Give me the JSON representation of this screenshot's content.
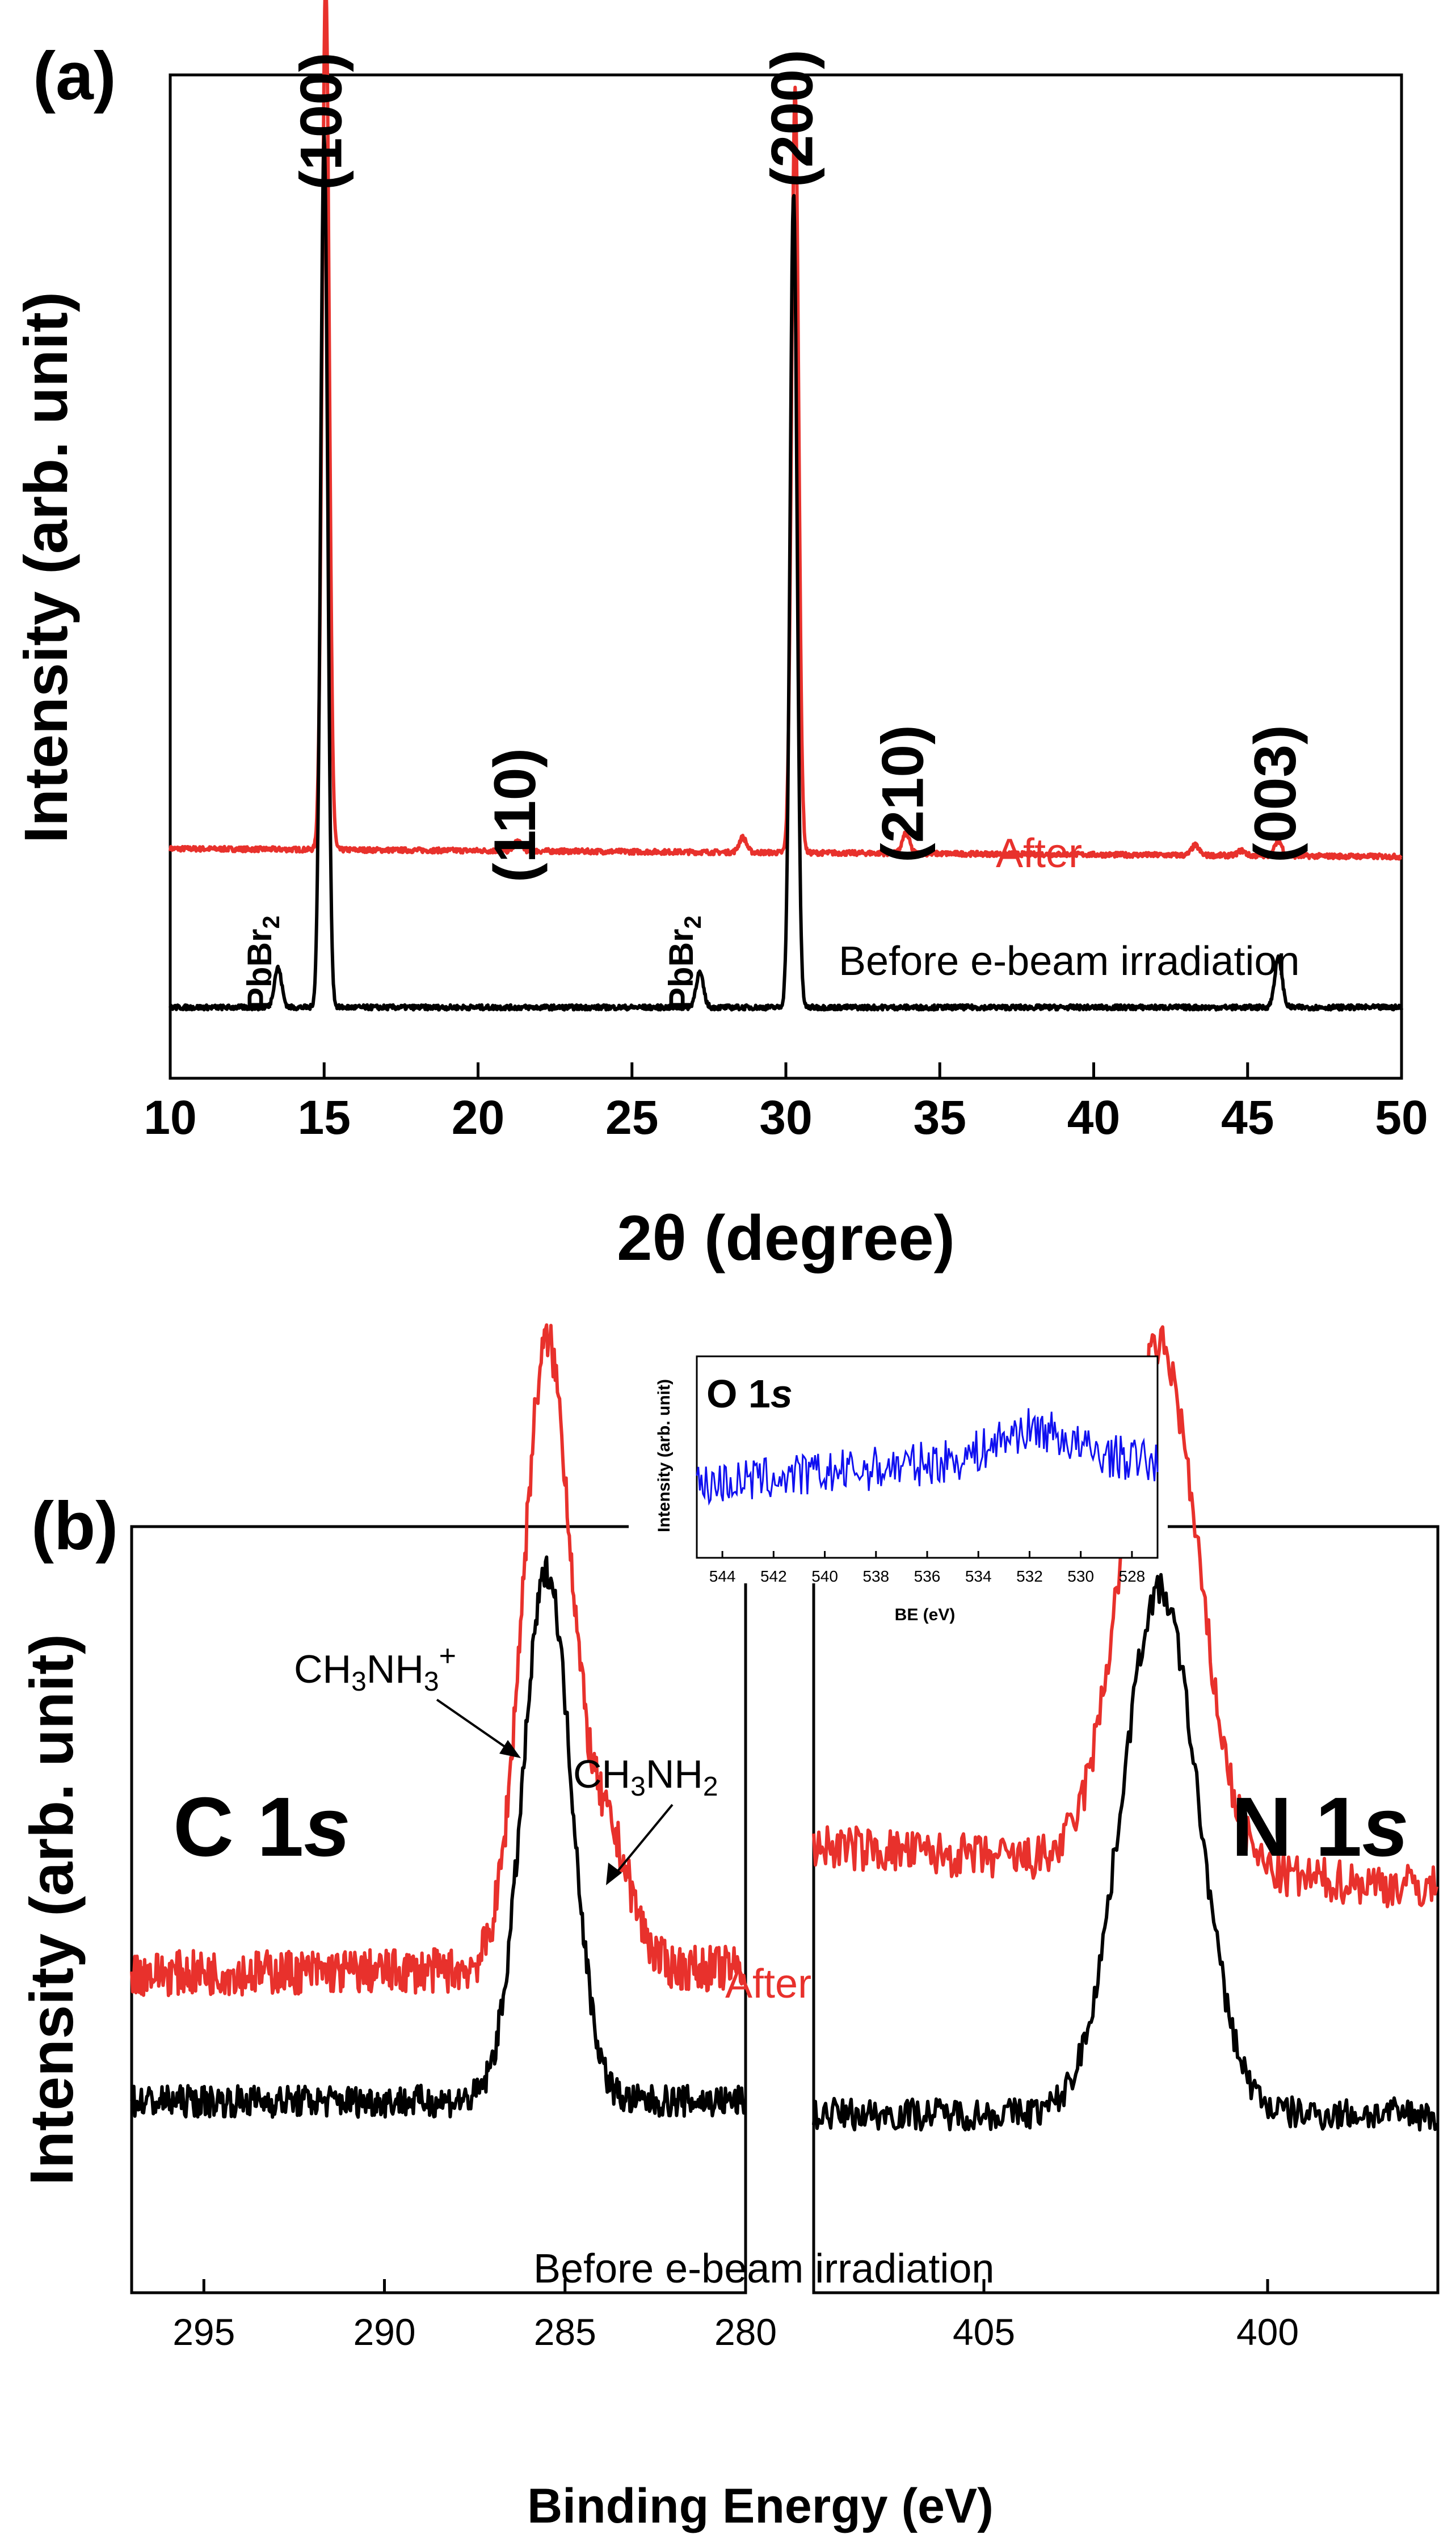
{
  "colors": {
    "before": "#000000",
    "after": "#e8312c",
    "inset": "#1010f0"
  },
  "chart_data": [
    {
      "type": "line",
      "panel": "(a)",
      "xlabel": "2θ (degree)",
      "ylabel": "Intensity (arb. unit)",
      "xlim": [
        10,
        50
      ],
      "ylim": [
        0,
        100
      ],
      "xticks": [
        "10",
        "15",
        "20",
        "25",
        "30",
        "35",
        "40",
        "45",
        "50"
      ],
      "series": [
        {
          "name": "Before e-beam irradiation",
          "baseline": 6,
          "peaks": [
            [
              13.5,
              4
            ],
            [
              15.0,
              88
            ],
            [
              27.2,
              3.5
            ],
            [
              30.25,
              82
            ],
            [
              46.0,
              5
            ]
          ]
        },
        {
          "name": "After",
          "baseline": 22,
          "peaks": [
            [
              15.05,
              88
            ],
            [
              21.3,
              1
            ],
            [
              28.6,
              1.5
            ],
            [
              30.3,
              77
            ],
            [
              33.9,
              2
            ],
            [
              43.3,
              1
            ],
            [
              44.8,
              0.5
            ],
            [
              46.0,
              1.5
            ]
          ]
        }
      ],
      "annotations": [
        {
          "text": "(100)",
          "x": 15.0
        },
        {
          "text": "(110)",
          "x": 21.3
        },
        {
          "text": "(200)",
          "x": 30.3
        },
        {
          "text": "(210)",
          "x": 33.9
        },
        {
          "text": "(003)",
          "x": 46.0
        },
        {
          "text": "PbBr",
          "sub": "2",
          "x": 13.5
        },
        {
          "text": "PbBr",
          "sub": "2",
          "x": 27.2
        },
        {
          "text": "After"
        },
        {
          "text": "Before e-beam irradiation"
        }
      ]
    },
    {
      "type": "line",
      "panel": "(b)",
      "xlabel": "Binding Energy (eV)",
      "ylabel": "Intensity (arb. unit)",
      "subplots": [
        {
          "title": "C 1s",
          "xlim": [
            297,
            280
          ],
          "xticks": [
            "295",
            "290",
            "285",
            "280"
          ],
          "before": {
            "base": 30,
            "peak_x": 285.5,
            "peak": 83
          },
          "after": {
            "base": 50,
            "peak_x": 285.5,
            "peak": 98,
            "shoulder_x": 283.8,
            "shoulder": 20
          }
        },
        {
          "title": "N 1s",
          "xlim": [
            408,
            397
          ],
          "xticks": [
            "405",
            "400"
          ],
          "before": {
            "base": 28,
            "peak_x": 401.9,
            "peak": 82
          },
          "after": {
            "base": 70,
            "peak_x": 401.9,
            "peak": 82
          }
        }
      ],
      "annotations": [
        "CH3NH3+",
        "CH3NH2",
        "After",
        "Before e-beam irradiation"
      ],
      "inset": {
        "title": "O 1s",
        "xlabel": "BE (eV)",
        "ylabel": "Intensity (arb. unit)",
        "xlim": [
          545,
          527
        ],
        "xticks": [
          "544",
          "542",
          "540",
          "538",
          "536",
          "534",
          "532",
          "530",
          "528"
        ],
        "peak_x": 532,
        "description": "noisy blue spectrum rising toward ~532 eV"
      }
    }
  ],
  "text": {
    "panel_a": "(a)",
    "panel_b": "(b)",
    "a_ylabel": "Intensity (arb. unit)",
    "a_xlabel": "2θ (degree)",
    "a_after": "After",
    "a_before": "Before e-beam irradiation",
    "pbbr": "PbBr",
    "sub2": "2",
    "c1s": "C 1",
    "n1s": "N 1",
    "s": "s",
    "ch3nh3": "CH",
    "nh": "NH",
    "sub3": "3",
    "plus": "+",
    "b_after": "After",
    "b_before": "Before e-beam irradiation",
    "b_ylabel": "Intensity (arb. unit)",
    "b_xlabel": "Binding Energy (eV)",
    "inset_title": "O 1",
    "inset_ylabel": "Intensity (arb. unit)",
    "inset_xlabel": "BE (eV)"
  }
}
